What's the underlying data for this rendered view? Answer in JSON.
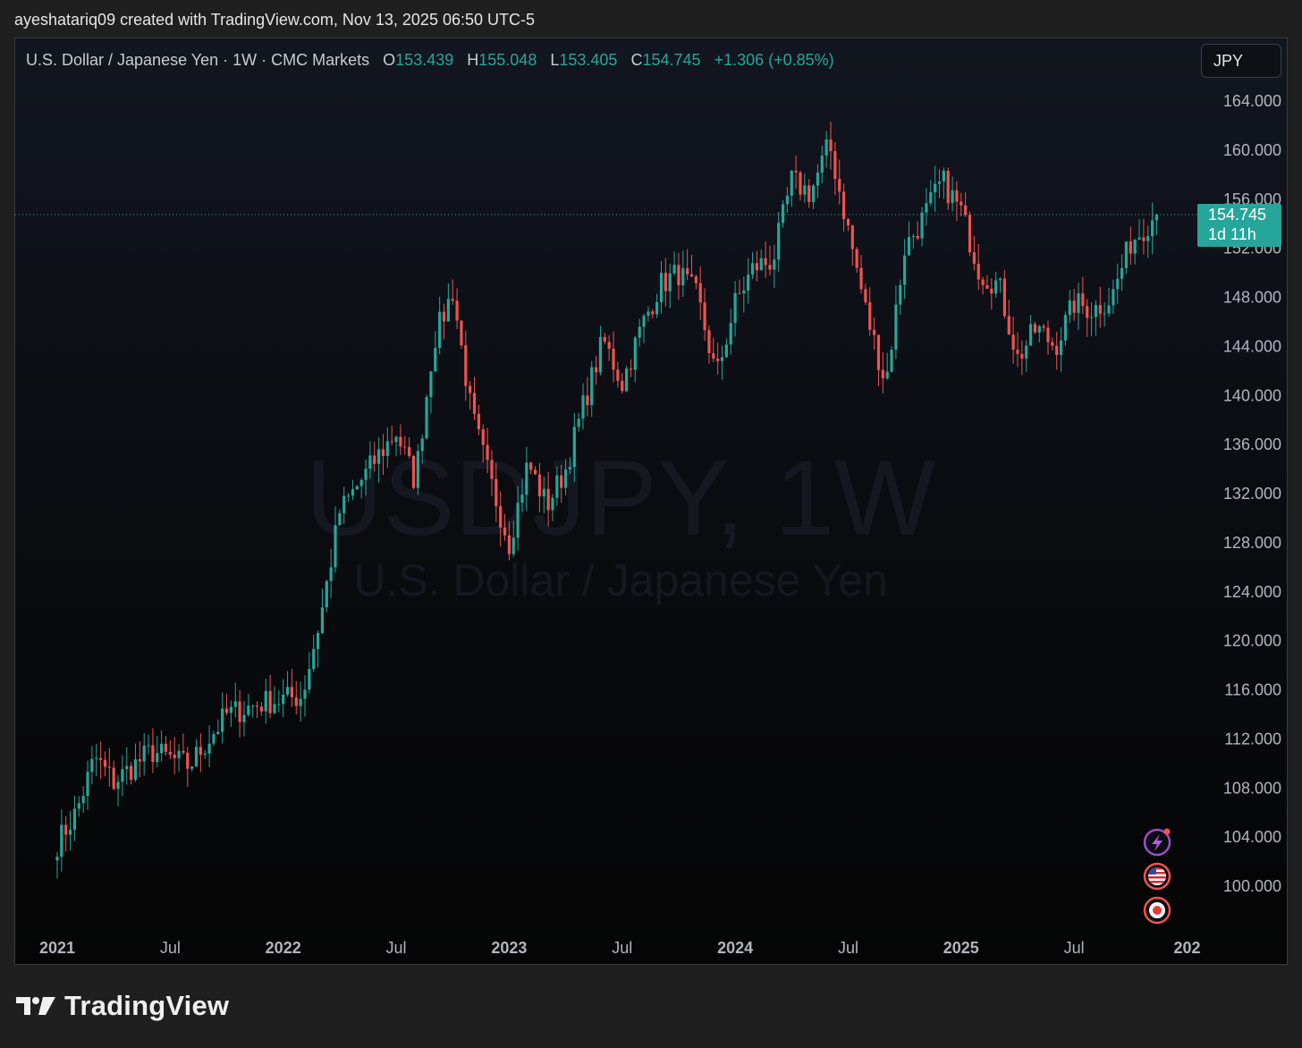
{
  "header": {
    "attribution": "ayeshatariq09 created with TradingView.com, Nov 13, 2025 06:50 UTC-5"
  },
  "legend": {
    "symbol": "U.S. Dollar / Japanese Yen · 1W · CMC Markets",
    "o_label": "O",
    "o_value": "153.439",
    "h_label": "H",
    "h_value": "155.048",
    "l_label": "L",
    "l_value": "153.405",
    "c_label": "C",
    "c_value": "154.745",
    "change": "+1.306 (+0.85%)"
  },
  "currency_button": "JPY",
  "watermark": {
    "line1": "USDJPY, 1W",
    "line2": "U.S. Dollar / Japanese Yen"
  },
  "price_tag": {
    "price": "154.745",
    "countdown": "1d 11h"
  },
  "icons": [
    "lightning-icon",
    "us-flag-icon",
    "record-icon"
  ],
  "colors": {
    "up": "#26a69a",
    "down": "#ef5350",
    "background": "#0b0d12",
    "text": "#b2b5be"
  },
  "footer": {
    "brand": "TradingView"
  },
  "chart_data": {
    "type": "candlestick",
    "interval": "1W",
    "ylim": [
      97,
      166
    ],
    "y_ticks": [
      "164.000",
      "160.000",
      "156.000",
      "152.000",
      "148.000",
      "144.000",
      "140.000",
      "136.000",
      "132.000",
      "128.000",
      "124.000",
      "120.000",
      "116.000",
      "112.000",
      "108.000",
      "104.000",
      "100.000"
    ],
    "x_ticks": [
      "2021",
      "Jul",
      "2022",
      "Jul",
      "2023",
      "Jul",
      "2024",
      "Jul",
      "2025",
      "Jul",
      "202"
    ],
    "last_price": 154.745,
    "series_points": [
      {
        "date": "2021-01",
        "close": 103.5
      },
      {
        "date": "2021-02",
        "close": 106.0
      },
      {
        "date": "2021-03",
        "close": 110.5
      },
      {
        "date": "2021-04",
        "close": 108.5
      },
      {
        "date": "2021-06",
        "close": 111.0
      },
      {
        "date": "2021-08",
        "close": 109.8
      },
      {
        "date": "2021-10",
        "close": 114.0
      },
      {
        "date": "2021-12",
        "close": 115.0
      },
      {
        "date": "2022-02",
        "close": 115.5
      },
      {
        "date": "2022-03",
        "close": 122.0
      },
      {
        "date": "2022-04",
        "close": 130.5
      },
      {
        "date": "2022-06",
        "close": 135.0
      },
      {
        "date": "2022-07",
        "close": 137.0
      },
      {
        "date": "2022-08",
        "close": 133.0
      },
      {
        "date": "2022-09",
        "close": 144.5
      },
      {
        "date": "2022-10",
        "close": 148.5
      },
      {
        "date": "2022-11",
        "close": 138.5
      },
      {
        "date": "2022-12",
        "close": 133.0
      },
      {
        "date": "2023-01",
        "close": 128.0
      },
      {
        "date": "2023-02",
        "close": 134.5
      },
      {
        "date": "2023-03",
        "close": 131.0
      },
      {
        "date": "2023-04",
        "close": 134.0
      },
      {
        "date": "2023-05",
        "close": 139.5
      },
      {
        "date": "2023-06",
        "close": 144.5
      },
      {
        "date": "2023-07",
        "close": 141.0
      },
      {
        "date": "2023-08",
        "close": 145.5
      },
      {
        "date": "2023-09",
        "close": 149.0
      },
      {
        "date": "2023-10",
        "close": 150.0
      },
      {
        "date": "2023-11",
        "close": 148.0
      },
      {
        "date": "2023-12",
        "close": 141.5
      },
      {
        "date": "2024-01",
        "close": 147.5
      },
      {
        "date": "2024-02",
        "close": 150.5
      },
      {
        "date": "2024-03",
        "close": 151.0
      },
      {
        "date": "2024-04",
        "close": 157.5
      },
      {
        "date": "2024-05",
        "close": 156.5
      },
      {
        "date": "2024-06",
        "close": 160.5
      },
      {
        "date": "2024-07",
        "close": 153.5
      },
      {
        "date": "2024-08",
        "close": 146.5
      },
      {
        "date": "2024-09",
        "close": 141.0
      },
      {
        "date": "2024-10",
        "close": 152.0
      },
      {
        "date": "2024-11",
        "close": 154.5
      },
      {
        "date": "2024-12",
        "close": 157.5
      },
      {
        "date": "2025-01",
        "close": 155.0
      },
      {
        "date": "2025-02",
        "close": 150.0
      },
      {
        "date": "2025-03",
        "close": 149.0
      },
      {
        "date": "2025-04",
        "close": 143.0
      },
      {
        "date": "2025-05",
        "close": 145.5
      },
      {
        "date": "2025-06",
        "close": 144.0
      },
      {
        "date": "2025-07",
        "close": 147.5
      },
      {
        "date": "2025-08",
        "close": 147.0
      },
      {
        "date": "2025-09",
        "close": 148.0
      },
      {
        "date": "2025-10",
        "close": 152.5
      },
      {
        "date": "2025-11",
        "close": 154.745
      }
    ]
  }
}
